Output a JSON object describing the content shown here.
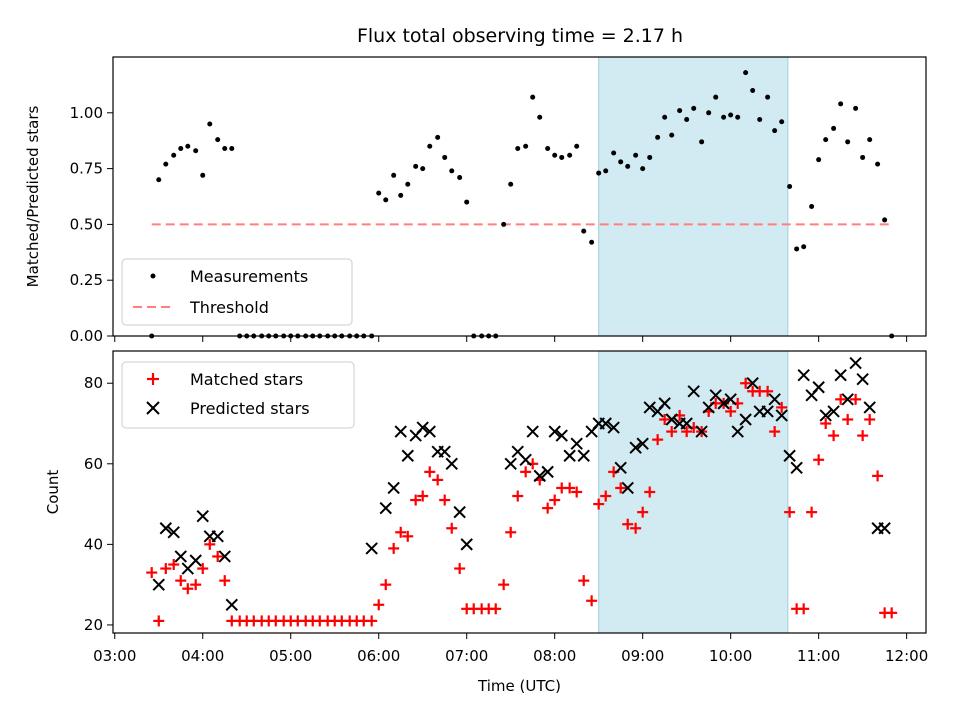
{
  "chart_data": [
    {
      "type": "scatter",
      "title": "Flux total observing time = 2.17 h",
      "xlabel": "",
      "ylabel": "Matched/Predicted stars",
      "xlim_hours": [
        2.98,
        12.22
      ],
      "ylim": [
        0,
        1.25
      ],
      "yticks": [
        0.0,
        0.25,
        0.5,
        0.75,
        1.0
      ],
      "ytick_labels": [
        "0.00",
        "0.25",
        "0.50",
        "0.75",
        "1.00"
      ],
      "highlight_hours": [
        8.5,
        10.65
      ],
      "legend": {
        "position": "lower-left",
        "entries": [
          "Measurements",
          "Threshold"
        ]
      },
      "series": [
        {
          "name": "Measurements",
          "color": "#000000",
          "x": [
            3.42,
            3.5,
            3.58,
            3.67,
            3.75,
            3.83,
            3.92,
            4.0,
            4.08,
            4.17,
            4.25,
            4.33,
            4.42,
            4.5,
            4.58,
            4.67,
            4.75,
            4.83,
            4.92,
            5.0,
            5.08,
            5.17,
            5.25,
            5.33,
            5.42,
            5.5,
            5.58,
            5.67,
            5.75,
            5.83,
            5.92,
            6.0,
            6.08,
            6.17,
            6.25,
            6.33,
            6.42,
            6.5,
            6.58,
            6.67,
            6.75,
            6.83,
            6.92,
            7.0,
            7.08,
            7.17,
            7.25,
            7.33,
            7.42,
            7.5,
            7.58,
            7.67,
            7.75,
            7.83,
            7.92,
            8.0,
            8.08,
            8.17,
            8.25,
            8.33,
            8.42,
            8.5,
            8.58,
            8.67,
            8.75,
            8.83,
            8.92,
            9.0,
            9.08,
            9.17,
            9.25,
            9.33,
            9.42,
            9.5,
            9.58,
            9.67,
            9.75,
            9.83,
            9.92,
            10.0,
            10.08,
            10.17,
            10.25,
            10.33,
            10.42,
            10.5,
            10.58,
            10.67,
            10.75,
            10.83,
            10.92,
            11.0,
            11.08,
            11.17,
            11.25,
            11.33,
            11.42,
            11.5,
            11.58,
            11.67,
            11.75,
            11.83
          ],
          "y": [
            0.0,
            0.7,
            0.77,
            0.81,
            0.84,
            0.85,
            0.83,
            0.72,
            0.95,
            0.88,
            0.84,
            0.84,
            0.0,
            0.0,
            0.0,
            0.0,
            0.0,
            0.0,
            0.0,
            0.0,
            0.0,
            0.0,
            0.0,
            0.0,
            0.0,
            0.0,
            0.0,
            0.0,
            0.0,
            0.0,
            0.0,
            0.64,
            0.61,
            0.72,
            0.63,
            0.68,
            0.76,
            0.75,
            0.85,
            0.89,
            0.8,
            0.74,
            0.71,
            0.6,
            0.0,
            0.0,
            0.0,
            0.0,
            0.5,
            0.68,
            0.84,
            0.85,
            1.07,
            0.98,
            0.84,
            0.81,
            0.8,
            0.81,
            0.85,
            0.47,
            0.42,
            0.73,
            0.74,
            0.82,
            0.78,
            0.76,
            0.81,
            0.75,
            0.8,
            0.89,
            0.98,
            0.9,
            1.01,
            0.97,
            1.02,
            0.87,
            1.0,
            1.07,
            0.98,
            0.99,
            0.98,
            1.18,
            1.1,
            0.97,
            1.07,
            0.92,
            0.96,
            0.67,
            0.39,
            0.4,
            0.58,
            0.79,
            0.88,
            0.93,
            1.04,
            0.87,
            1.02,
            0.8,
            0.88,
            0.77,
            0.52,
            0.0
          ]
        },
        {
          "name": "Threshold",
          "color": "#ff7f7f",
          "x": [
            3.42,
            11.83
          ],
          "y": [
            0.5,
            0.5
          ]
        }
      ]
    },
    {
      "type": "scatter",
      "title": "",
      "xlabel": "Time (UTC)",
      "ylabel": "Count",
      "xlim_hours": [
        2.98,
        12.22
      ],
      "ylim": [
        18,
        88
      ],
      "yticks": [
        20,
        40,
        60,
        80
      ],
      "ytick_labels": [
        "20",
        "40",
        "60",
        "80"
      ],
      "xticks_hours": [
        3,
        4,
        5,
        6,
        7,
        8,
        9,
        10,
        11,
        12
      ],
      "xtick_labels": [
        "03:00",
        "04:00",
        "05:00",
        "06:00",
        "07:00",
        "08:00",
        "09:00",
        "10:00",
        "11:00",
        "12:00"
      ],
      "highlight_hours": [
        8.5,
        10.65
      ],
      "legend": {
        "position": "upper-left",
        "entries": [
          "Matched stars",
          "Predicted stars"
        ]
      },
      "series": [
        {
          "name": "Matched stars",
          "color": "#ff0000",
          "marker": "plus",
          "x": [
            3.42,
            3.5,
            3.58,
            3.67,
            3.75,
            3.83,
            3.92,
            4.0,
            4.08,
            4.17,
            4.25,
            4.33,
            4.42,
            4.5,
            4.58,
            4.67,
            4.75,
            4.83,
            4.92,
            5.0,
            5.08,
            5.17,
            5.25,
            5.33,
            5.42,
            5.5,
            5.58,
            5.67,
            5.75,
            5.83,
            5.92,
            6.0,
            6.08,
            6.17,
            6.25,
            6.33,
            6.42,
            6.5,
            6.58,
            6.67,
            6.75,
            6.83,
            6.92,
            7.0,
            7.08,
            7.17,
            7.25,
            7.33,
            7.42,
            7.5,
            7.58,
            7.67,
            7.75,
            7.83,
            7.92,
            8.0,
            8.08,
            8.17,
            8.25,
            8.33,
            8.42,
            8.5,
            8.58,
            8.67,
            8.75,
            8.83,
            8.92,
            9.0,
            9.08,
            9.17,
            9.25,
            9.33,
            9.42,
            9.5,
            9.58,
            9.67,
            9.75,
            9.83,
            9.92,
            10.0,
            10.08,
            10.17,
            10.25,
            10.33,
            10.42,
            10.5,
            10.58,
            10.67,
            10.75,
            10.83,
            10.92,
            11.0,
            11.08,
            11.17,
            11.25,
            11.33,
            11.42,
            11.5,
            11.58,
            11.67,
            11.75,
            11.83
          ],
          "y": [
            33,
            21,
            34,
            35,
            31,
            29,
            30,
            34,
            40,
            37,
            31,
            21,
            21,
            21,
            21,
            21,
            21,
            21,
            21,
            21,
            21,
            21,
            21,
            21,
            21,
            21,
            21,
            21,
            21,
            21,
            21,
            25,
            30,
            39,
            43,
            42,
            51,
            52,
            58,
            56,
            51,
            44,
            34,
            24,
            24,
            24,
            24,
            24,
            30,
            43,
            52,
            58,
            60,
            56,
            49,
            51,
            54,
            54,
            53,
            31,
            26,
            50,
            52,
            58,
            54,
            45,
            44,
            48,
            53,
            66,
            71,
            68,
            72,
            68,
            69,
            68,
            73,
            75,
            75,
            73,
            75,
            80,
            78,
            78,
            78,
            68,
            74,
            48,
            24,
            24,
            48,
            61,
            70,
            67,
            76,
            71,
            76,
            67,
            71,
            57,
            23,
            23
          ]
        },
        {
          "name": "Predicted stars",
          "color": "#000000",
          "marker": "x",
          "x": [
            3.5,
            3.58,
            3.67,
            3.75,
            3.83,
            3.92,
            4.0,
            4.08,
            4.17,
            4.25,
            4.33,
            5.92,
            6.08,
            6.17,
            6.25,
            6.33,
            6.42,
            6.5,
            6.58,
            6.67,
            6.75,
            6.83,
            6.92,
            7.0,
            7.5,
            7.58,
            7.67,
            7.75,
            7.83,
            7.92,
            8.0,
            8.08,
            8.17,
            8.25,
            8.33,
            8.42,
            8.5,
            8.58,
            8.67,
            8.75,
            8.83,
            8.92,
            9.0,
            9.08,
            9.17,
            9.25,
            9.33,
            9.42,
            9.5,
            9.58,
            9.67,
            9.75,
            9.83,
            9.92,
            10.0,
            10.08,
            10.17,
            10.25,
            10.33,
            10.42,
            10.5,
            10.58,
            10.67,
            10.75,
            10.83,
            10.92,
            11.0,
            11.08,
            11.17,
            11.25,
            11.33,
            11.42,
            11.5,
            11.58,
            11.67,
            11.75
          ],
          "y": [
            30,
            44,
            43,
            37,
            34,
            36,
            47,
            42,
            42,
            37,
            25,
            39,
            49,
            54,
            68,
            62,
            67,
            69,
            68,
            63,
            63,
            60,
            48,
            40,
            60,
            63,
            61,
            68,
            57,
            58,
            68,
            67,
            62,
            65,
            62,
            68,
            70,
            70,
            69,
            59,
            54,
            64,
            65,
            74,
            73,
            75,
            71,
            70,
            70,
            78,
            68,
            74,
            77,
            75,
            76,
            68,
            71,
            80,
            73,
            73,
            76,
            72,
            62,
            59,
            82,
            77,
            79,
            72,
            73,
            82,
            76,
            85,
            81,
            74,
            44,
            44
          ]
        }
      ]
    }
  ]
}
